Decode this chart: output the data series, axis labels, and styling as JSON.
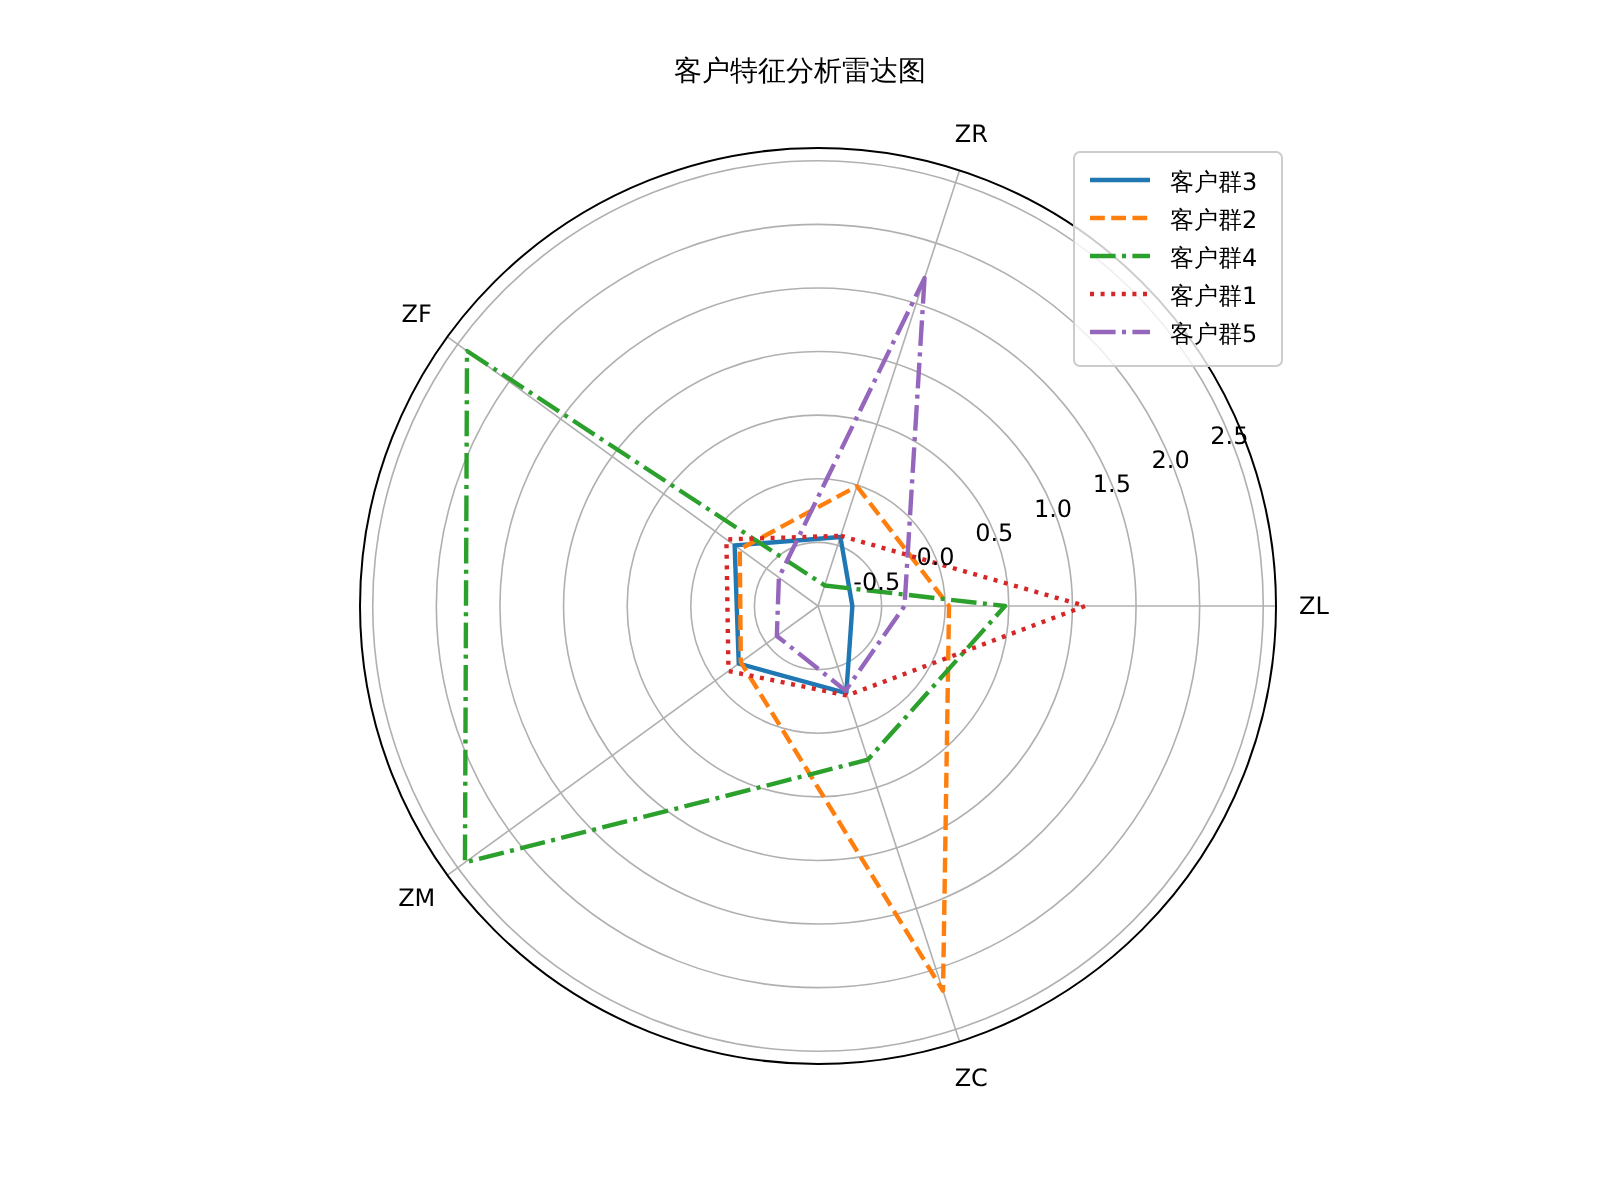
{
  "chart_data": {
    "type": "radar",
    "title": "客户特征分析雷达图",
    "categories": [
      "ZR",
      "ZL",
      "ZC",
      "ZM",
      "ZF"
    ],
    "ylim": [
      -1,
      2.6
    ],
    "yticks": [
      -0.5,
      {
        "value": 0,
        "label": "0.0"
      },
      0.5,
      {
        "value": 1,
        "label": "1.0"
      },
      1.5,
      {
        "value": 2,
        "label": "2.0"
      },
      2.5
    ],
    "grid": true,
    "legend": "top right",
    "series": [
      {
        "name": "客户群3",
        "color": "#1f77b4",
        "line_style": "solid",
        "values": [
          -0.43,
          -0.73,
          -0.28,
          -0.23,
          -0.19
        ]
      },
      {
        "name": "客户群2",
        "color": "#ff7f0e",
        "line_style": "dashed",
        "values": [
          -0.01,
          0.03,
          2.18,
          -0.25,
          -0.24
        ]
      },
      {
        "name": "客户群4",
        "color": "#2ca02c",
        "line_style": "dashdot",
        "values": [
          -0.83,
          0.47,
          0.27,
          2.43,
          2.41
        ]
      },
      {
        "name": "客户群1",
        "color": "#d62728",
        "line_style": "dotted",
        "values": [
          -0.42,
          1.1,
          -0.26,
          -0.13,
          -0.11
        ]
      },
      {
        "name": "客户群5",
        "color": "#9467bd",
        "line_style": "dashdot",
        "values": [
          1.71,
          -0.32,
          -0.3,
          -0.6,
          -0.62
        ]
      }
    ]
  }
}
